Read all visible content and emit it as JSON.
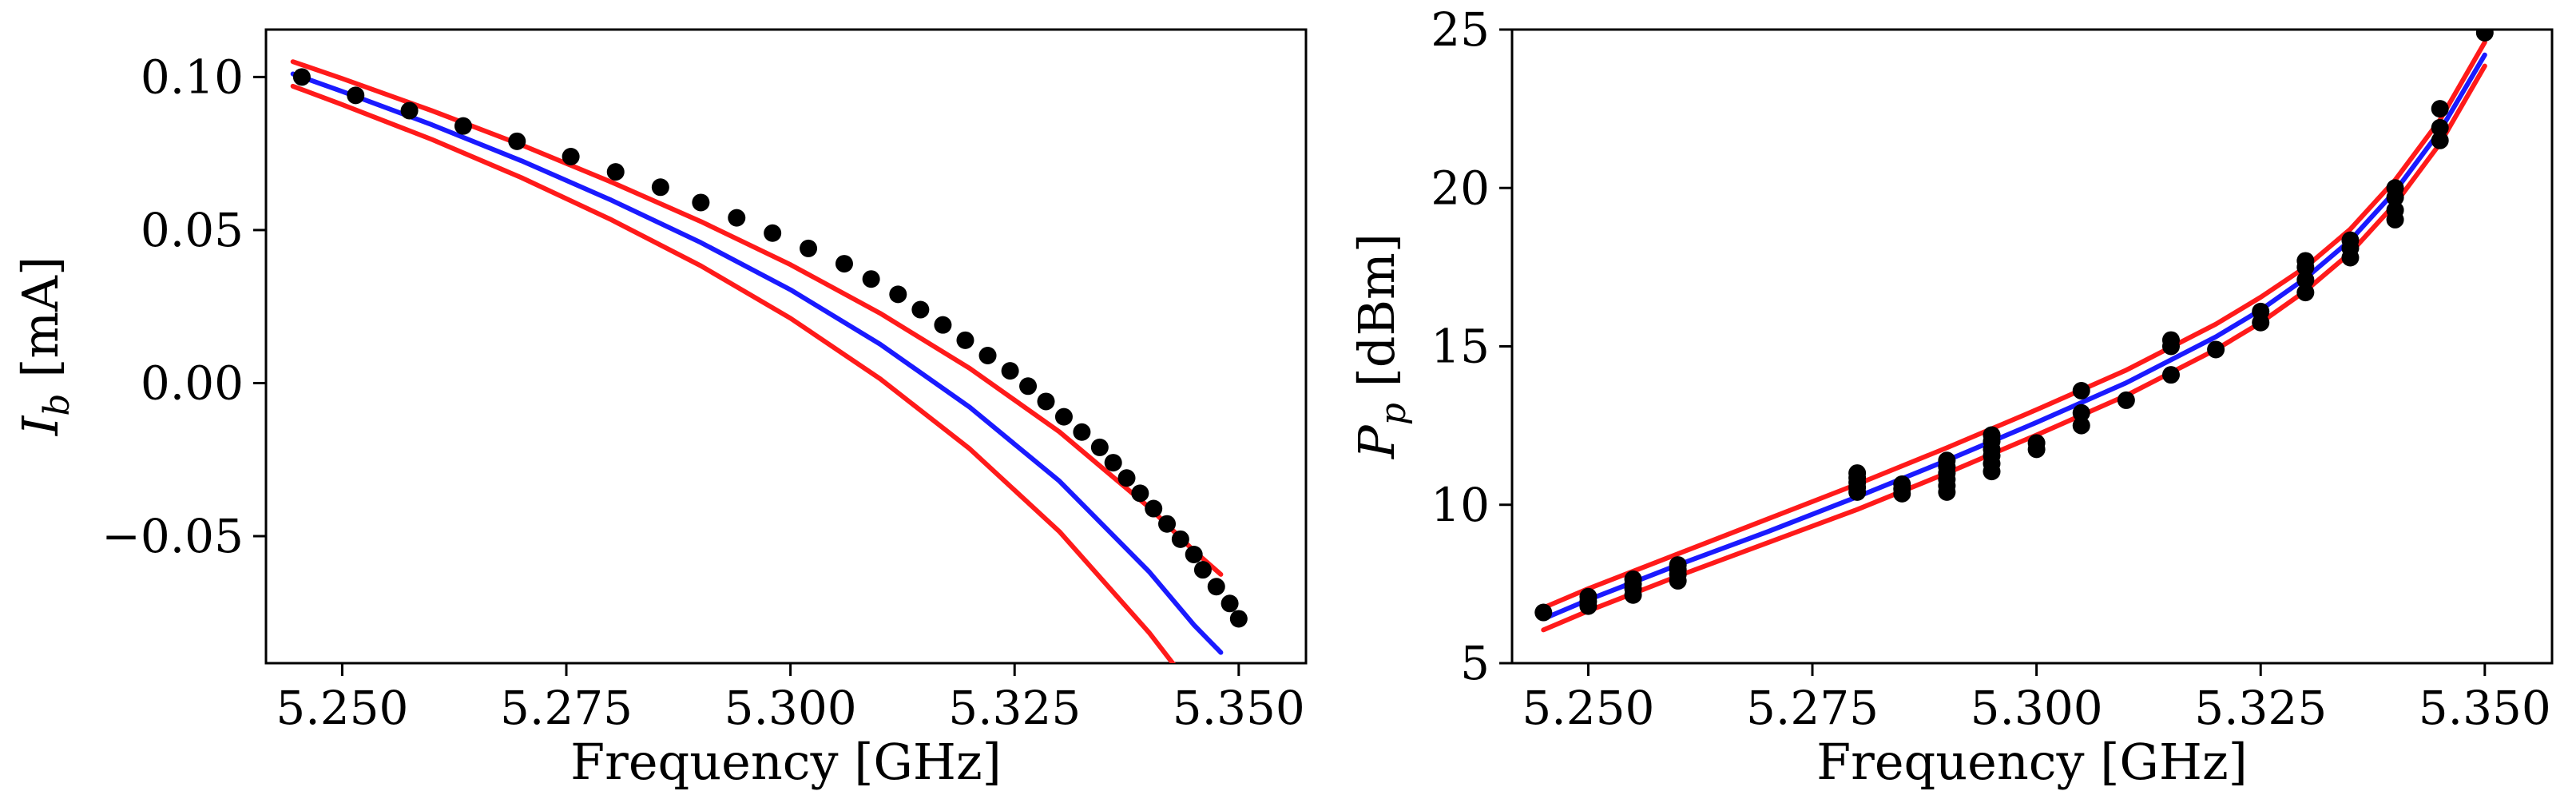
{
  "chart_data": [
    {
      "type": "scatter",
      "xlabel": "Frequency [GHz]",
      "ylabel_main": "I",
      "ylabel_sub": "b",
      "ylabel_unit": " [mA]",
      "xlim": [
        5.2415,
        5.3575
      ],
      "ylim": [
        -0.0915,
        0.1155
      ],
      "xticks": [
        5.25,
        5.275,
        5.3,
        5.325,
        5.35
      ],
      "xtick_labels": [
        "5.250",
        "5.275",
        "5.300",
        "5.325",
        "5.350"
      ],
      "yticks": [
        -0.05,
        0.0,
        0.05,
        0.1
      ],
      "ytick_labels": [
        "−0.05",
        "0.00",
        "0.05",
        "0.10"
      ],
      "grid": false,
      "series": [
        {
          "role": "data",
          "color": "#000000",
          "x": [
            5.2455,
            5.2515,
            5.2575,
            5.2635,
            5.2695,
            5.2755,
            5.2805,
            5.2855,
            5.29,
            5.294,
            5.298,
            5.302,
            5.306,
            5.309,
            5.312,
            5.3145,
            5.317,
            5.3195,
            5.322,
            5.3245,
            5.3265,
            5.3285,
            5.3305,
            5.3325,
            5.3345,
            5.336,
            5.3375,
            5.339,
            5.3405,
            5.342,
            5.3435,
            5.345,
            5.346,
            5.3475,
            5.349,
            5.35
          ],
          "y": [
            0.1,
            0.094,
            0.089,
            0.084,
            0.079,
            0.074,
            0.069,
            0.064,
            0.059,
            0.054,
            0.049,
            0.044,
            0.039,
            0.034,
            0.029,
            0.024,
            0.019,
            0.014,
            0.009,
            0.004,
            -0.001,
            -0.006,
            -0.011,
            -0.016,
            -0.021,
            -0.026,
            -0.031,
            -0.036,
            -0.041,
            -0.046,
            -0.051,
            -0.056,
            -0.061,
            -0.0665,
            -0.072,
            -0.077
          ]
        },
        {
          "role": "fit",
          "color": "#1a1aff",
          "x": [
            5.2445,
            5.25,
            5.26,
            5.27,
            5.28,
            5.29,
            5.3,
            5.31,
            5.32,
            5.33,
            5.34,
            5.345,
            5.348
          ],
          "y": [
            0.101,
            0.0953,
            0.0844,
            0.0726,
            0.0598,
            0.0459,
            0.0305,
            0.0127,
            -0.0079,
            -0.032,
            -0.0616,
            -0.079,
            -0.088
          ]
        },
        {
          "role": "bound-upper",
          "color": "#ff1a1a",
          "x": [
            5.2445,
            5.25,
            5.26,
            5.27,
            5.28,
            5.29,
            5.3,
            5.31,
            5.32,
            5.33,
            5.34,
            5.345,
            5.348
          ],
          "y": [
            0.105,
            0.0995,
            0.089,
            0.0778,
            0.0657,
            0.0528,
            0.0387,
            0.0228,
            0.0048,
            -0.0159,
            -0.0406,
            -0.0548,
            -0.0625
          ]
        },
        {
          "role": "bound-lower",
          "color": "#ff1a1a",
          "x": [
            5.2445,
            5.25,
            5.26,
            5.27,
            5.28,
            5.29,
            5.3,
            5.31,
            5.32,
            5.33,
            5.34,
            5.345,
            5.348
          ],
          "y": [
            0.097,
            0.091,
            0.0796,
            0.0671,
            0.0534,
            0.0383,
            0.0212,
            0.0014,
            -0.0215,
            -0.0485,
            -0.0815,
            -0.1005,
            -0.1115
          ]
        }
      ]
    },
    {
      "type": "scatter",
      "xlabel": "Frequency [GHz]",
      "ylabel_main": "P",
      "ylabel_sub": "p",
      "ylabel_unit": " [dBm]",
      "xlim": [
        5.2415,
        5.3575
      ],
      "ylim": [
        5,
        25
      ],
      "xticks": [
        5.25,
        5.275,
        5.3,
        5.325,
        5.35
      ],
      "xtick_labels": [
        "5.250",
        "5.275",
        "5.300",
        "5.325",
        "5.350"
      ],
      "yticks": [
        5,
        10,
        15,
        20,
        25
      ],
      "ytick_labels": [
        "5",
        "10",
        "15",
        "20",
        "25"
      ],
      "grid": false,
      "series": [
        {
          "role": "data",
          "color": "#000000",
          "x": [
            5.245,
            5.25,
            5.25,
            5.25,
            5.255,
            5.255,
            5.255,
            5.255,
            5.26,
            5.26,
            5.26,
            5.26,
            5.28,
            5.28,
            5.28,
            5.28,
            5.28,
            5.285,
            5.285,
            5.285,
            5.29,
            5.29,
            5.29,
            5.29,
            5.29,
            5.29,
            5.295,
            5.295,
            5.295,
            5.295,
            5.295,
            5.295,
            5.3,
            5.3,
            5.305,
            5.305,
            5.305,
            5.31,
            5.315,
            5.315,
            5.315,
            5.32,
            5.325,
            5.325,
            5.33,
            5.33,
            5.33,
            5.33,
            5.335,
            5.335,
            5.335,
            5.34,
            5.34,
            5.34,
            5.34,
            5.345,
            5.345,
            5.345,
            5.35
          ],
          "y": [
            6.6,
            6.8,
            6.95,
            7.1,
            7.15,
            7.35,
            7.5,
            7.65,
            7.6,
            7.8,
            7.95,
            8.1,
            10.4,
            10.55,
            10.7,
            10.85,
            11.0,
            10.35,
            10.5,
            10.65,
            10.4,
            10.6,
            10.8,
            11.0,
            11.2,
            11.4,
            11.05,
            11.3,
            11.55,
            11.75,
            12.0,
            12.2,
            11.75,
            11.95,
            12.5,
            12.9,
            13.6,
            13.3,
            14.1,
            15.0,
            15.2,
            14.9,
            15.75,
            16.1,
            16.7,
            17.1,
            17.5,
            17.7,
            17.8,
            18.1,
            18.35,
            19.0,
            19.3,
            19.7,
            20.0,
            21.5,
            21.9,
            22.5,
            24.9
          ]
        },
        {
          "role": "fit",
          "color": "#1a1aff",
          "x": [
            5.245,
            5.25,
            5.26,
            5.27,
            5.28,
            5.29,
            5.3,
            5.31,
            5.32,
            5.325,
            5.33,
            5.335,
            5.34,
            5.345,
            5.35
          ],
          "y": [
            6.4,
            7.0,
            8.1,
            9.15,
            10.25,
            11.4,
            12.6,
            13.85,
            15.3,
            16.15,
            17.15,
            18.35,
            19.9,
            21.8,
            24.2
          ]
        },
        {
          "role": "bound-upper",
          "color": "#ff1a1a",
          "x": [
            5.245,
            5.25,
            5.26,
            5.27,
            5.28,
            5.29,
            5.3,
            5.31,
            5.32,
            5.325,
            5.33,
            5.335,
            5.34,
            5.345,
            5.35
          ],
          "y": [
            6.75,
            7.35,
            8.45,
            9.55,
            10.65,
            11.8,
            13.0,
            14.25,
            15.7,
            16.55,
            17.5,
            18.7,
            20.25,
            22.15,
            24.6
          ]
        },
        {
          "role": "bound-lower",
          "color": "#ff1a1a",
          "x": [
            5.245,
            5.25,
            5.26,
            5.27,
            5.28,
            5.29,
            5.3,
            5.31,
            5.32,
            5.325,
            5.33,
            5.335,
            5.34,
            5.345,
            5.35
          ],
          "y": [
            6.05,
            6.65,
            7.75,
            8.8,
            9.85,
            11.0,
            12.2,
            13.45,
            14.9,
            15.75,
            16.75,
            17.95,
            19.5,
            21.4,
            23.85
          ]
        }
      ]
    }
  ]
}
